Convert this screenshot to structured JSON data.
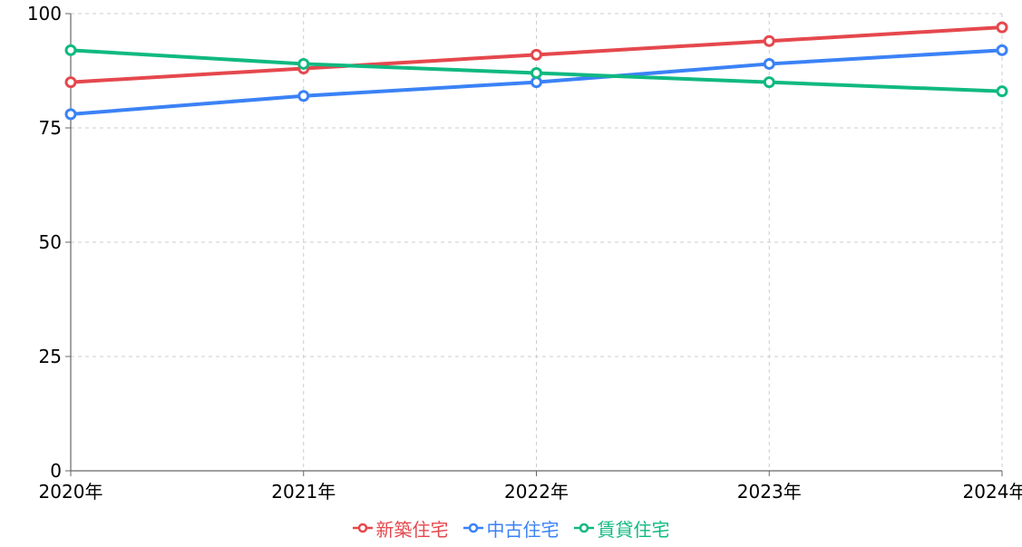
{
  "chart_data": {
    "type": "line",
    "title": "",
    "xlabel": "",
    "ylabel": "",
    "categories": [
      "2020年",
      "2021年",
      "2022年",
      "2023年",
      "2024年"
    ],
    "ylim": [
      0,
      100
    ],
    "yticks": [
      "0",
      "25",
      "50",
      "75",
      "100"
    ],
    "grid": true,
    "legend_position": "bottom-center",
    "series": [
      {
        "name": "新築住宅",
        "color": "#e5484d",
        "values": [
          85,
          88,
          91,
          94,
          97
        ]
      },
      {
        "name": "中古住宅",
        "color": "#3b82f6",
        "values": [
          78,
          82,
          85,
          89,
          92
        ]
      },
      {
        "name": "賃貸住宅",
        "color": "#10b981",
        "values": [
          92,
          89,
          87,
          85,
          83
        ]
      }
    ]
  }
}
